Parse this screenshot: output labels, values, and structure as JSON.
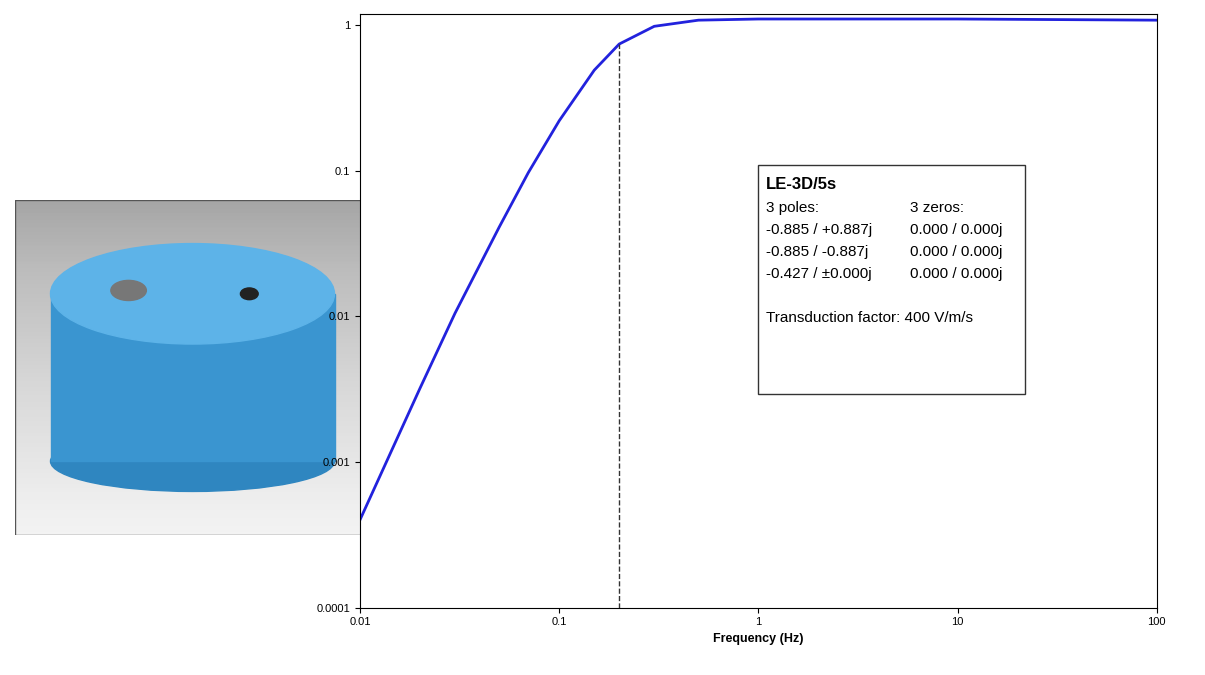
{
  "chart_data": {
    "type": "line",
    "log": true,
    "grid": false,
    "x_label": "Frequency (Hz)",
    "x": [
      0.01,
      0.02,
      0.03,
      0.05,
      0.07,
      0.1,
      0.15,
      0.2,
      0.3,
      0.5,
      1,
      10,
      100
    ],
    "series": [
      {
        "name": "LE-3D/5s",
        "color": "#2222dd",
        "line_style": "solid",
        "values": [
          0.0004,
          0.0032,
          0.0105,
          0.041,
          0.097,
          0.22,
          0.49,
          0.74,
          0.98,
          1.08,
          1.1,
          1.1,
          1.08
        ]
      }
    ],
    "xlim": [
      0.01,
      100
    ],
    "xticks": [
      0.01,
      0.1,
      1,
      10,
      100
    ],
    "ylim": [
      0.0001,
      1.2
    ],
    "yticks": [
      0.0001,
      0.001,
      0.01,
      0.1,
      1
    ],
    "vline_x": 0.2,
    "annotation": {
      "title": "LE-3D/5s",
      "poles_header": "3 poles:",
      "zeros_header": "3 zeros:",
      "poles": [
        "-0.885 / +0.887j",
        "-0.885 / -0.887j",
        "-0.427 / ±0.000j"
      ],
      "zeros": [
        "0.000 / 0.000j",
        "0.000 / 0.000j",
        "0.000 / 0.000j"
      ],
      "footer": "Transduction factor: 400 V/m/s"
    }
  }
}
